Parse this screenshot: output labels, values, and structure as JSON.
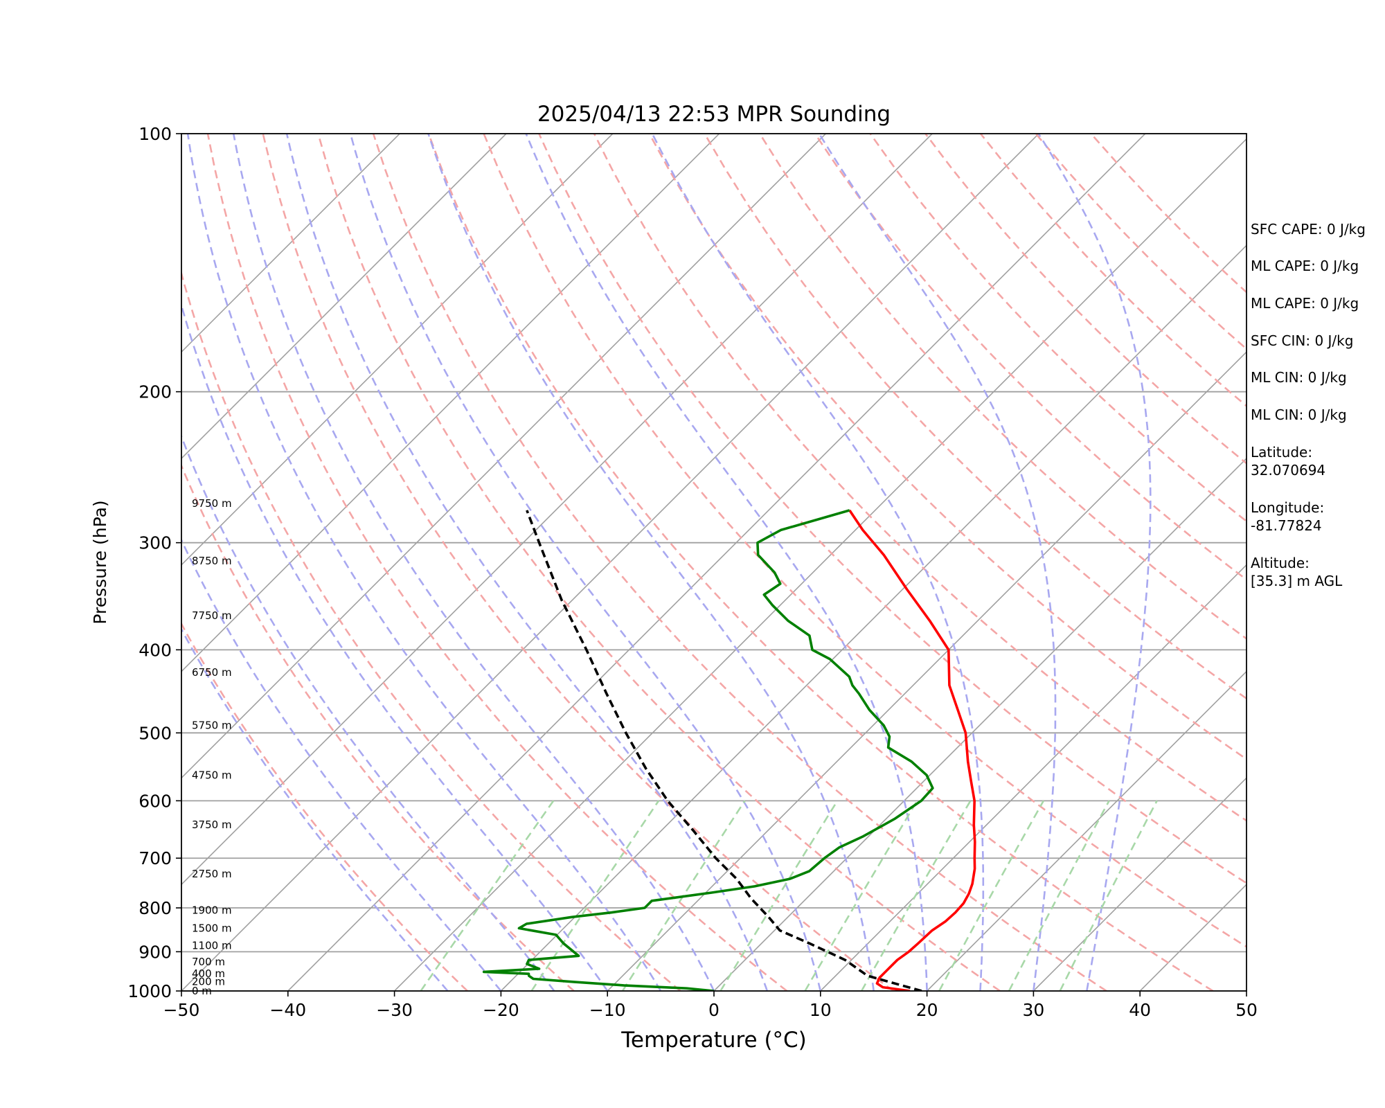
{
  "chart_data": {
    "type": "line",
    "subtype": "skew-T log-P sounding",
    "title": "2025/04/13 22:53 MPR Sounding",
    "xlabel": "Temperature (°C)",
    "ylabel": "Pressure (hPa)",
    "xlim": [
      -50,
      50
    ],
    "ylim": [
      1000,
      100
    ],
    "y_scale": "log",
    "grid": true,
    "x_ticks": [
      "−50",
      "−40",
      "−30",
      "−20",
      "−10",
      "0",
      "10",
      "20",
      "30",
      "40",
      "50"
    ],
    "y_ticks": [
      "1000",
      "900",
      "800",
      "700",
      "600",
      "500",
      "400",
      "300",
      "200",
      "100"
    ],
    "height_labels": [
      {
        "p": 1000,
        "label": "0 m"
      },
      {
        "p": 975,
        "label": "200 m"
      },
      {
        "p": 955,
        "label": "400 m"
      },
      {
        "p": 925,
        "label": "700 m"
      },
      {
        "p": 885,
        "label": "1100 m"
      },
      {
        "p": 845,
        "label": "1500 m"
      },
      {
        "p": 805,
        "label": "1900 m"
      },
      {
        "p": 730,
        "label": "2750 m"
      },
      {
        "p": 640,
        "label": "3750 m"
      },
      {
        "p": 560,
        "label": "4750 m"
      },
      {
        "p": 490,
        "label": "5750 m"
      },
      {
        "p": 425,
        "label": "6750 m"
      },
      {
        "p": 365,
        "label": "7750 m"
      },
      {
        "p": 315,
        "label": "8750 m"
      },
      {
        "p": 270,
        "label": "9750 m"
      }
    ],
    "series": [
      {
        "role": "temperature",
        "color": "#ff0000",
        "points": [
          [
            1000,
            18.4
          ],
          [
            990,
            15.5
          ],
          [
            980,
            14.6
          ],
          [
            965,
            14.3
          ],
          [
            945,
            14.3
          ],
          [
            920,
            14.3
          ],
          [
            900,
            14.6
          ],
          [
            880,
            14.7
          ],
          [
            850,
            14.8
          ],
          [
            830,
            15.2
          ],
          [
            810,
            15.3
          ],
          [
            790,
            15.2
          ],
          [
            770,
            14.8
          ],
          [
            750,
            14.2
          ],
          [
            720,
            13.0
          ],
          [
            700,
            12.0
          ],
          [
            670,
            10.5
          ],
          [
            640,
            8.8
          ],
          [
            600,
            6.6
          ],
          [
            570,
            4.5
          ],
          [
            540,
            2.3
          ],
          [
            500,
            -0.6
          ],
          [
            470,
            -3.5
          ],
          [
            440,
            -6.6
          ],
          [
            400,
            -10.0
          ],
          [
            370,
            -14.5
          ],
          [
            340,
            -19.6
          ],
          [
            310,
            -25.0
          ],
          [
            290,
            -29.3
          ],
          [
            275,
            -32.4
          ]
        ]
      },
      {
        "role": "dewpoint",
        "color": "#008000",
        "points": [
          [
            1000,
            0.0
          ],
          [
            993,
            -2.8
          ],
          [
            985,
            -9.0
          ],
          [
            976,
            -14.0
          ],
          [
            968,
            -18.1
          ],
          [
            960,
            -18.8
          ],
          [
            955,
            -19.0
          ],
          [
            950,
            -23.4
          ],
          [
            942,
            -18.5
          ],
          [
            930,
            -20.1
          ],
          [
            920,
            -20.3
          ],
          [
            910,
            -16.0
          ],
          [
            880,
            -18.6
          ],
          [
            860,
            -20.1
          ],
          [
            845,
            -24.2
          ],
          [
            835,
            -23.9
          ],
          [
            820,
            -20.3
          ],
          [
            810,
            -17.0
          ],
          [
            800,
            -14.3
          ],
          [
            785,
            -14.3
          ],
          [
            768,
            -9.5
          ],
          [
            755,
            -6.0
          ],
          [
            740,
            -3.4
          ],
          [
            725,
            -2.3
          ],
          [
            700,
            -2.1
          ],
          [
            680,
            -1.7
          ],
          [
            660,
            -0.5
          ],
          [
            630,
            0.8
          ],
          [
            600,
            1.6
          ],
          [
            580,
            1.5
          ],
          [
            560,
            -0.3
          ],
          [
            540,
            -3.0
          ],
          [
            520,
            -6.5
          ],
          [
            505,
            -7.4
          ],
          [
            490,
            -9.0
          ],
          [
            470,
            -11.8
          ],
          [
            450,
            -14.3
          ],
          [
            440,
            -15.7
          ],
          [
            430,
            -16.8
          ],
          [
            410,
            -20.3
          ],
          [
            400,
            -22.8
          ],
          [
            385,
            -24.4
          ],
          [
            370,
            -27.8
          ],
          [
            355,
            -30.7
          ],
          [
            345,
            -32.5
          ],
          [
            335,
            -32.0
          ],
          [
            325,
            -33.6
          ],
          [
            310,
            -36.8
          ],
          [
            300,
            -38.0
          ],
          [
            290,
            -37.0
          ],
          [
            275,
            -32.4
          ]
        ]
      },
      {
        "role": "parcel",
        "color": "#000000",
        "dashed": true,
        "points": [
          [
            1000,
            19.5
          ],
          [
            960,
            13.0
          ],
          [
            920,
            9.4
          ],
          [
            880,
            4.5
          ],
          [
            850,
            0.5
          ],
          [
            820,
            -1.8
          ],
          [
            780,
            -5.2
          ],
          [
            740,
            -8.4
          ],
          [
            700,
            -12.3
          ],
          [
            650,
            -17.0
          ],
          [
            600,
            -22.2
          ],
          [
            550,
            -27.3
          ],
          [
            500,
            -32.5
          ],
          [
            450,
            -38.0
          ],
          [
            400,
            -44.0
          ],
          [
            350,
            -51.0
          ],
          [
            300,
            -58.5
          ],
          [
            275,
            -62.7
          ]
        ]
      }
    ],
    "background_lines": {
      "isotherms_c": [
        -110,
        -100,
        -90,
        -80,
        -70,
        -60,
        -50,
        -40,
        -30,
        -20,
        -10,
        0,
        10,
        20,
        30,
        40,
        50
      ],
      "dry_adiabats_k": [
        250,
        260,
        270,
        280,
        290,
        300,
        310,
        320,
        330,
        340,
        350,
        360,
        370,
        380,
        390,
        400,
        410,
        420,
        430,
        440
      ],
      "moist_adiabats_c": [
        -25,
        -20,
        -15,
        -10,
        -5,
        0,
        5,
        10,
        15,
        20,
        25,
        30,
        35
      ],
      "mixing_ratio_gkg": [
        0.4,
        1,
        2,
        4,
        7,
        10,
        16,
        24,
        32
      ]
    }
  },
  "info": {
    "sfc_cape": "SFC CAPE: 0 J/kg",
    "ml_cape_1": "ML CAPE: 0 J/kg",
    "ml_cape_2": "ML CAPE: 0 J/kg",
    "sfc_cin": "SFC CIN: 0 J/kg",
    "ml_cin_1": "ML CIN: 0 J/kg",
    "ml_cin_2": "ML CIN: 0 J/kg",
    "latitude": "Latitude:\n32.070694",
    "longitude": "Longitude:\n-81.77824",
    "altitude": "Altitude:\n[35.3] m AGL"
  },
  "colors": {
    "temperature": "#ff0000",
    "dewpoint": "#008000",
    "parcel": "#000000",
    "isotherm": "#a0a0a0",
    "dry_adiabat": "#f4a6a6",
    "moist_adiabat": "#a8a8f0",
    "mixing_ratio": "#a8d8a8"
  }
}
